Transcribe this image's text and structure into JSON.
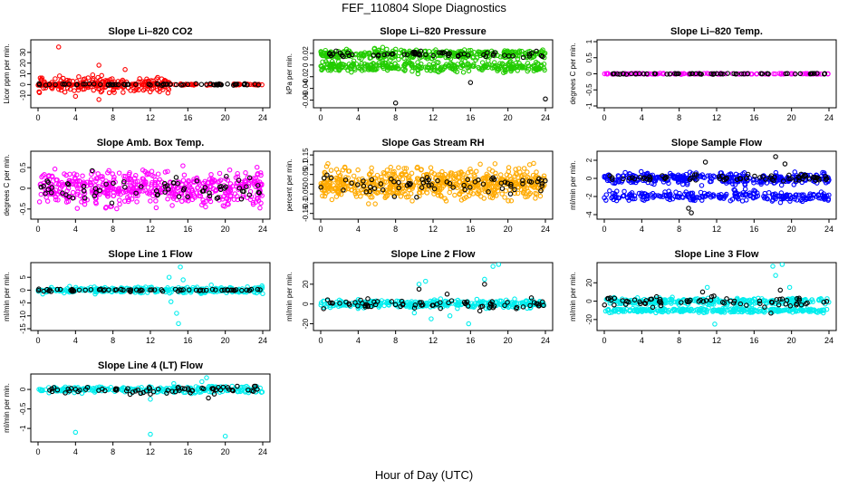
{
  "figure": {
    "title": "FEF_110804  Slope Diagnostics",
    "xlabel": "Hour of Day (UTC)"
  },
  "chart_data": [
    {
      "type": "scatter",
      "title": "Slope Li–820 CO2",
      "ylabel": "Licor ppm per min.",
      "xlim": [
        0,
        24
      ],
      "ylim": [
        -20,
        40
      ],
      "xticks": [
        0,
        4,
        8,
        12,
        16,
        20,
        24
      ],
      "yticks": [
        -10,
        0,
        10,
        20,
        30
      ],
      "series": [
        {
          "color": "#ff0000",
          "center": 0,
          "spread": 5,
          "span": [
            0,
            14
          ],
          "count": 200,
          "extra": [
            [
              2.2,
              35
            ],
            [
              6.5,
              18
            ],
            [
              9.3,
              14
            ],
            [
              6.5,
              -14
            ],
            [
              4,
              -11
            ]
          ]
        },
        {
          "color": "#ff0000",
          "center": 0,
          "spread": 0.4,
          "span": [
            0,
            24
          ],
          "count": 130
        },
        {
          "color": "#000000",
          "center": 0,
          "spread": 0.5,
          "span": [
            0,
            24
          ],
          "count": 70
        }
      ]
    },
    {
      "type": "scatter",
      "title": "Slope Li–820 Pressure",
      "ylabel": "kPa per min.",
      "xlim": [
        0,
        24
      ],
      "ylim": [
        -0.07,
        0.04
      ],
      "xticks": [
        0,
        4,
        8,
        12,
        16,
        20,
        24
      ],
      "yticks": [
        -0.06,
        -0.04,
        -0.02,
        0.0,
        0.02
      ],
      "series": [
        {
          "color": "#22cc00",
          "center": 0.018,
          "spread": 0.006,
          "span": [
            0,
            24
          ],
          "count": 320
        },
        {
          "color": "#22cc00",
          "center": -0.003,
          "spread": 0.006,
          "span": [
            0,
            24
          ],
          "count": 320
        },
        {
          "color": "#000000",
          "center": 0.018,
          "spread": 0.004,
          "span": [
            0,
            24
          ],
          "count": 60,
          "extra": [
            [
              8,
              -0.065
            ],
            [
              24,
              -0.058
            ],
            [
              16,
              -0.03
            ]
          ]
        }
      ]
    },
    {
      "type": "scatter",
      "title": "Slope Li–820 Temp.",
      "ylabel": "degrees C per min.",
      "xlim": [
        0,
        24
      ],
      "ylim": [
        -1,
        1
      ],
      "xticks": [
        0,
        4,
        8,
        12,
        16,
        20,
        24
      ],
      "yticks": [
        -1.0,
        -0.5,
        0.0,
        0.5,
        1.0
      ],
      "series": [
        {
          "color": "#ff00ff",
          "center": 0,
          "spread": 0.01,
          "span": [
            0,
            24
          ],
          "count": 140
        },
        {
          "color": "#000000",
          "center": 0,
          "spread": 0.01,
          "span": [
            0,
            24
          ],
          "count": 60
        }
      ]
    },
    {
      "type": "scatter",
      "title": "Slope Amb. Box Temp.",
      "ylabel": "degrees C per min.",
      "xlim": [
        0,
        24
      ],
      "ylim": [
        -0.7,
        0.85
      ],
      "xticks": [
        0,
        4,
        8,
        12,
        16,
        20,
        24
      ],
      "yticks": [
        -0.5,
        0.0,
        0.5
      ],
      "series": [
        {
          "color": "#ff00ff",
          "center": 0,
          "spread": 0.28,
          "span": [
            0,
            24
          ],
          "count": 520
        },
        {
          "color": "#000000",
          "center": 0,
          "spread": 0.22,
          "span": [
            0,
            24
          ],
          "count": 70
        }
      ]
    },
    {
      "type": "scatter",
      "title": "Slope Gas Stream RH",
      "ylabel": "percent per min.",
      "xlim": [
        0,
        24
      ],
      "ylim": [
        -0.17,
        0.16
      ],
      "xticks": [
        0,
        4,
        8,
        12,
        16,
        20,
        24
      ],
      "yticks": [
        -0.15,
        -0.1,
        -0.05,
        0.0,
        0.05,
        0.1,
        0.15
      ],
      "series": [
        {
          "color": "#ffaa00",
          "center": 0,
          "spread": 0.055,
          "span": [
            0,
            24
          ],
          "count": 620
        },
        {
          "color": "#000000",
          "center": 0,
          "spread": 0.035,
          "span": [
            0,
            24
          ],
          "count": 70
        }
      ]
    },
    {
      "type": "scatter",
      "title": "Slope Sample Flow",
      "ylabel": "ml/min per min.",
      "xlim": [
        0,
        24
      ],
      "ylim": [
        -4.3,
        2.8
      ],
      "xticks": [
        0,
        4,
        8,
        12,
        16,
        20,
        24
      ],
      "yticks": [
        -4,
        -2,
        0,
        2
      ],
      "series": [
        {
          "color": "#0000ff",
          "center": 0,
          "spread": 0.45,
          "span": [
            0,
            24
          ],
          "count": 330
        },
        {
          "color": "#0000ff",
          "center": -2,
          "spread": 0.4,
          "span": [
            0,
            24
          ],
          "count": 240
        },
        {
          "color": "#000000",
          "center": 0.1,
          "spread": 0.3,
          "span": [
            0,
            24
          ],
          "count": 70,
          "extra": [
            [
              10.8,
              1.8
            ],
            [
              18.3,
              2.4
            ],
            [
              19.3,
              1.6
            ],
            [
              9.3,
              -3.8
            ],
            [
              9,
              -3.3
            ]
          ]
        }
      ]
    },
    {
      "type": "scatter",
      "title": "Slope Line 1 Flow",
      "ylabel": "ml/min per min.",
      "xlim": [
        0,
        24
      ],
      "ylim": [
        -15,
        10
      ],
      "xticks": [
        0,
        4,
        8,
        12,
        16,
        20,
        24
      ],
      "yticks": [
        -15,
        -10,
        -5,
        0,
        5
      ],
      "series": [
        {
          "color": "#00eeee",
          "center": 0,
          "spread": 0.8,
          "span": [
            0,
            24
          ],
          "count": 300,
          "extra": [
            [
              14,
              5
            ],
            [
              15.2,
              9
            ],
            [
              14.8,
              -9
            ],
            [
              15,
              -13
            ],
            [
              14.2,
              -4.5
            ],
            [
              15.5,
              4
            ],
            [
              18.5,
              2
            ],
            [
              0.5,
              -1.5
            ]
          ]
        },
        {
          "color": "#000000",
          "center": 0,
          "spread": 0.3,
          "span": [
            0,
            24
          ],
          "count": 70
        }
      ]
    },
    {
      "type": "scatter",
      "title": "Slope Line 2 Flow",
      "ylabel": "ml/min per min.",
      "xlim": [
        0,
        24
      ],
      "ylim": [
        -25,
        40
      ],
      "xticks": [
        0,
        4,
        8,
        12,
        16,
        20,
        24
      ],
      "yticks": [
        -20,
        0,
        20
      ],
      "series": [
        {
          "color": "#00eeee",
          "center": 0,
          "spread": 3,
          "span": [
            0,
            24
          ],
          "count": 320,
          "extra": [
            [
              10.5,
              20
            ],
            [
              11.2,
              23
            ],
            [
              17.5,
              25
            ],
            [
              18.4,
              38
            ],
            [
              19,
              40
            ],
            [
              15.8,
              -20
            ],
            [
              13.8,
              -12
            ],
            [
              11.8,
              -15
            ],
            [
              10,
              -9
            ]
          ]
        },
        {
          "color": "#000000",
          "center": 0,
          "spread": 3,
          "span": [
            0,
            24
          ],
          "count": 70,
          "extra": [
            [
              10.5,
              15
            ],
            [
              17.5,
              20
            ],
            [
              13.5,
              10
            ],
            [
              17,
              -7
            ]
          ]
        }
      ]
    },
    {
      "type": "scatter",
      "title": "Slope Line 3 Flow",
      "ylabel": "ml/min per min.",
      "xlim": [
        0,
        24
      ],
      "ylim": [
        -30,
        40
      ],
      "xticks": [
        0,
        4,
        8,
        12,
        16,
        20,
        24
      ],
      "yticks": [
        -20,
        0,
        20
      ],
      "series": [
        {
          "color": "#00eeee",
          "center": 0,
          "spread": 2.5,
          "span": [
            0,
            24
          ],
          "count": 260,
          "extra": [
            [
              11,
              15
            ],
            [
              18,
              38
            ],
            [
              19,
              40
            ],
            [
              18.3,
              28
            ],
            [
              19.8,
              15
            ],
            [
              11.8,
              -25
            ]
          ]
        },
        {
          "color": "#00eeee",
          "center": -10,
          "spread": 1.5,
          "span": [
            0,
            24
          ],
          "count": 260
        },
        {
          "color": "#000000",
          "center": 0,
          "spread": 4,
          "span": [
            0,
            24
          ],
          "count": 70,
          "extra": [
            [
              10.5,
              10
            ],
            [
              18.8,
              12
            ],
            [
              17.8,
              -13
            ]
          ]
        }
      ]
    },
    {
      "type": "scatter",
      "title": "Slope Line 4 (LT) Flow",
      "ylabel": "ml/min per min.",
      "xlim": [
        0,
        24
      ],
      "ylim": [
        -1.3,
        0.35
      ],
      "xticks": [
        0,
        4,
        8,
        12,
        16,
        20,
        24
      ],
      "yticks": [
        -1.0,
        -0.5,
        0.0
      ],
      "series": [
        {
          "color": "#00eeee",
          "center": 0,
          "spread": 0.06,
          "span": [
            0,
            24
          ],
          "count": 260,
          "extra": [
            [
              4,
              -1.1
            ],
            [
              12,
              -1.15
            ],
            [
              20,
              -1.2
            ],
            [
              18,
              0.3
            ],
            [
              17.5,
              0.2
            ],
            [
              14.5,
              0.15
            ],
            [
              12,
              -0.25
            ]
          ]
        },
        {
          "color": "#000000",
          "center": 0,
          "spread": 0.07,
          "span": [
            0,
            24
          ],
          "count": 70,
          "extra": [
            [
              18.2,
              -0.22
            ],
            [
              12,
              -0.12
            ]
          ]
        }
      ]
    }
  ]
}
